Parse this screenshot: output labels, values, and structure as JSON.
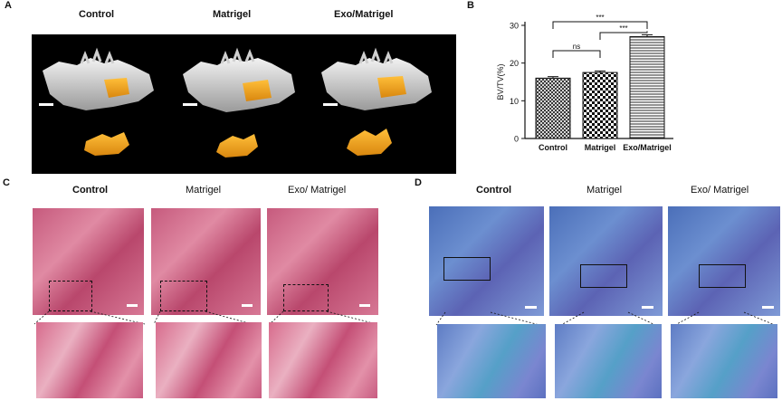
{
  "panel_a": {
    "label": "A",
    "titles": [
      "Control",
      "Matrigel",
      "Exo/Matrigel"
    ]
  },
  "panel_b": {
    "label": "B"
  },
  "panel_c": {
    "label": "C",
    "titles": [
      "Control",
      "Matrigel",
      "Exo/ Matrigel"
    ]
  },
  "panel_d": {
    "label": "D",
    "titles": [
      "Control",
      "Matrigel",
      "Exo/ Matrigel"
    ]
  },
  "chart_data": {
    "type": "bar",
    "categories": [
      "Control",
      "Matrigel",
      "Exo/Matrigel"
    ],
    "values": [
      16,
      17.5,
      27
    ],
    "errors": [
      0.4,
      0.4,
      0.5
    ],
    "ylabel": "BV/TV(%)",
    "ylim": [
      0,
      30
    ],
    "yticks": [
      0,
      10,
      20,
      30
    ],
    "patterns": [
      "crosshatch",
      "checker",
      "horizontal-lines"
    ],
    "significance": [
      {
        "from": 0,
        "to": 2,
        "label": "***"
      },
      {
        "from": 0,
        "to": 1,
        "label": "ns"
      },
      {
        "from": 1,
        "to": 2,
        "label": "***"
      }
    ]
  }
}
